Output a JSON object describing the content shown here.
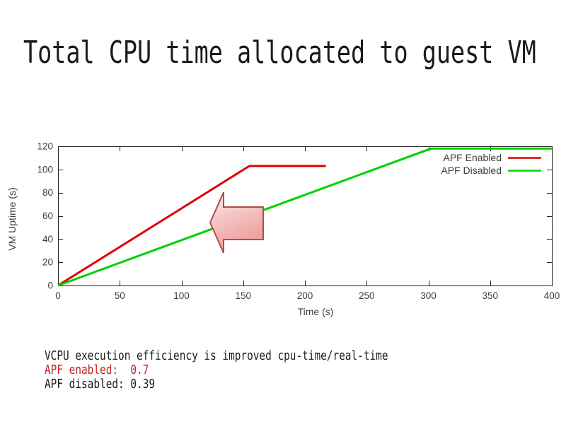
{
  "slide": {
    "title": "Total CPU time allocated to guest VM",
    "notes": [
      {
        "text": "VCPU execution efficiency is improved cpu-time/real-time",
        "color": "#1b1b1b"
      },
      {
        "text": "APF enabled:  0.7",
        "color": "#c42121"
      },
      {
        "text": "APF disabled: 0.39",
        "color": "#1b1b1b"
      }
    ]
  },
  "chart_data": {
    "type": "line",
    "title": "",
    "xlabel": "Time (s)",
    "ylabel": "VM Uptime (s)",
    "xlim": [
      0,
      400
    ],
    "ylim": [
      0,
      120
    ],
    "xticks": [
      0,
      50,
      100,
      150,
      200,
      250,
      300,
      350,
      400
    ],
    "yticks": [
      0,
      20,
      40,
      60,
      80,
      100,
      120
    ],
    "grid": false,
    "legend_position": "top-right-inside",
    "legend": [
      "APF Enabled",
      "APF Disabled"
    ],
    "series": [
      {
        "name": "APF Enabled",
        "color": "#df0000",
        "points": [
          [
            0,
            0
          ],
          [
            155,
            103
          ],
          [
            217,
            103
          ]
        ]
      },
      {
        "name": "APF Disabled",
        "color": "#00d000",
        "points": [
          [
            0,
            0
          ],
          [
            302,
            118
          ],
          [
            400,
            118
          ]
        ]
      }
    ],
    "annotation": {
      "name": "left-block-arrow",
      "stroke": "#b04c4c",
      "fill_from": "#fceaea",
      "fill_to": "#ef9a9a"
    },
    "colors": {
      "border": "#222222",
      "tick_label": "#3c3c3c",
      "axis_label": "#3c3c3c",
      "legend_text": "#3c3c3c"
    }
  }
}
